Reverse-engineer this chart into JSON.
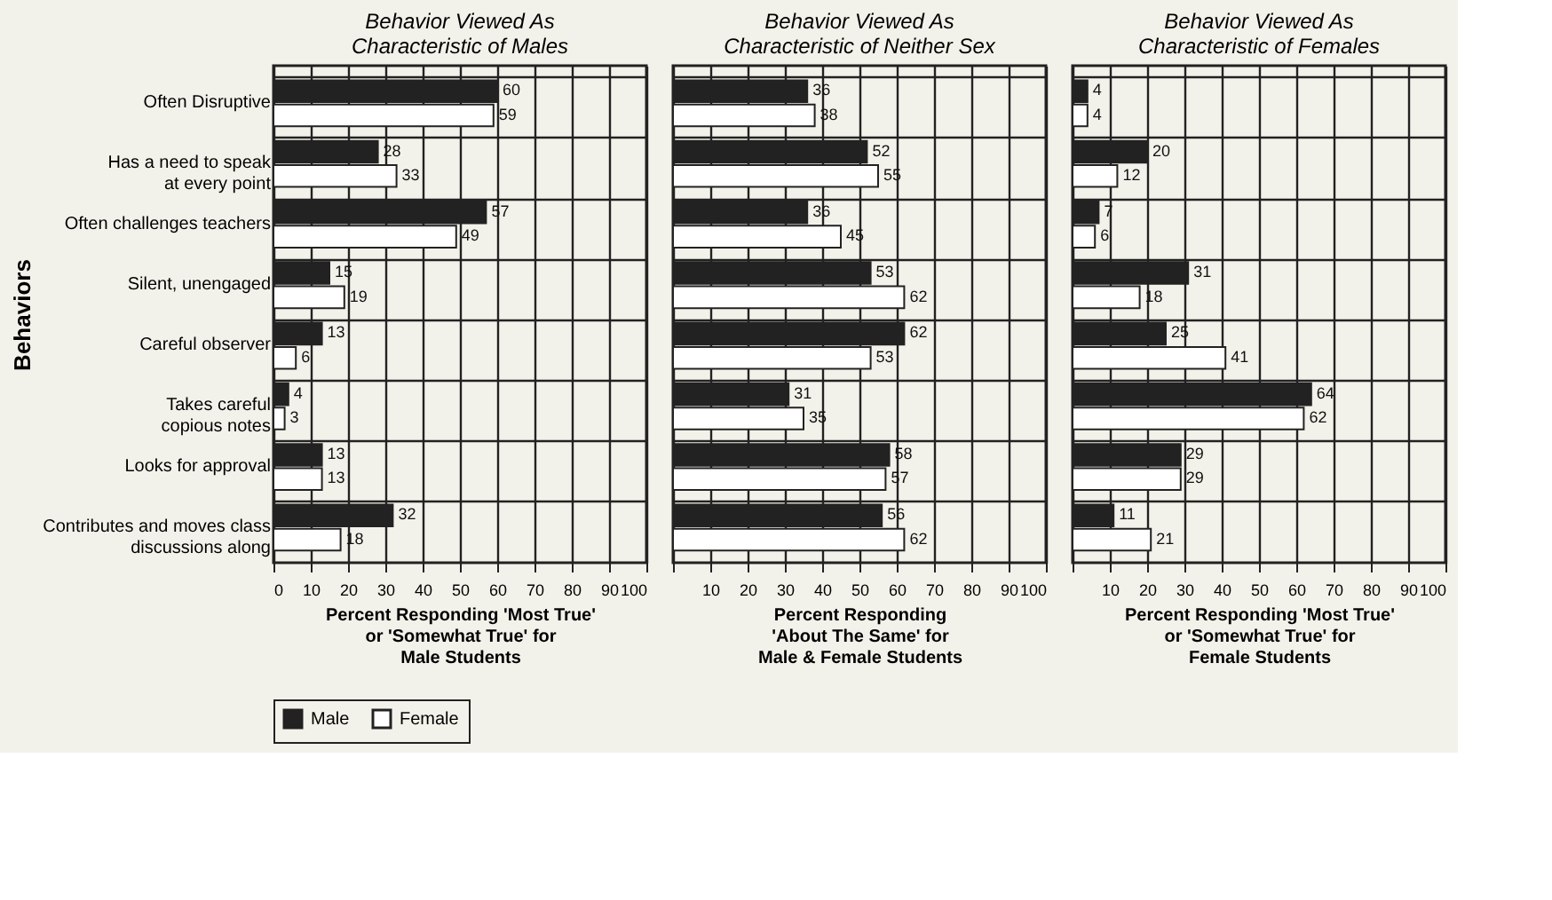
{
  "chart_data": [
    {
      "type": "bar",
      "orientation": "horizontal",
      "title": "Behavior Viewed As\nCharacteristic of Males",
      "xlabel": "Percent Responding 'Most True'\nor 'Somewhat True' for\nMale Students",
      "ylabel": "Behaviors",
      "categories": [
        "Often Disruptive",
        "Has a need to speak\nat every point",
        "Often challenges teachers",
        "Silent, unengaged",
        "Careful observer",
        "Takes careful\ncopious notes",
        "Looks for approval",
        "Contributes and moves class\ndiscussions along"
      ],
      "series": [
        {
          "name": "Male",
          "color": "#222222",
          "values": [
            60,
            28,
            57,
            15,
            13,
            4,
            13,
            32
          ]
        },
        {
          "name": "Female",
          "color": "#ffffff",
          "values": [
            59,
            33,
            49,
            19,
            6,
            3,
            13,
            18
          ]
        }
      ],
      "xlim": [
        0,
        100
      ],
      "xticks": [
        0,
        10,
        20,
        30,
        40,
        50,
        60,
        70,
        80,
        90,
        100
      ],
      "grid": true,
      "data_labels": true,
      "legend": "bottom"
    },
    {
      "type": "bar",
      "orientation": "horizontal",
      "title": "Behavior Viewed As\nCharacteristic of Neither Sex",
      "xlabel": "Percent Responding\n'About The Same' for\nMale & Female Students",
      "categories": [
        null,
        null,
        null,
        null,
        null,
        null,
        null,
        null
      ],
      "series": [
        {
          "name": "Male",
          "color": "#222222",
          "values": [
            36,
            52,
            36,
            53,
            62,
            31,
            58,
            56
          ]
        },
        {
          "name": "Female",
          "color": "#ffffff",
          "values": [
            38,
            55,
            45,
            62,
            53,
            35,
            57,
            62
          ]
        }
      ],
      "xlim": [
        0,
        100
      ],
      "xticks": [
        {
          "value": 0,
          "label": null
        },
        10,
        20,
        30,
        40,
        50,
        60,
        70,
        80,
        90,
        100
      ],
      "grid": true,
      "data_labels": true,
      "legend": "bottom"
    },
    {
      "type": "bar",
      "orientation": "horizontal",
      "title": "Behavior Viewed As\nCharacteristic of Females",
      "xlabel": "Percent Responding 'Most True'\nor 'Somewhat True' for\nFemale Students",
      "categories": [
        null,
        null,
        null,
        null,
        null,
        null,
        null,
        null
      ],
      "series": [
        {
          "name": "Male",
          "color": "#222222",
          "values": [
            4,
            20,
            7,
            31,
            25,
            64,
            29,
            11
          ]
        },
        {
          "name": "Female",
          "color": "#ffffff",
          "values": [
            4,
            12,
            6,
            18,
            41,
            62,
            29,
            21
          ]
        }
      ],
      "xlim": [
        0,
        100
      ],
      "xticks": [
        {
          "value": 0,
          "label": null
        },
        10,
        20,
        30,
        40,
        50,
        60,
        70,
        80,
        90,
        100
      ],
      "grid": true,
      "data_labels": true,
      "legend": "bottom"
    }
  ]
}
